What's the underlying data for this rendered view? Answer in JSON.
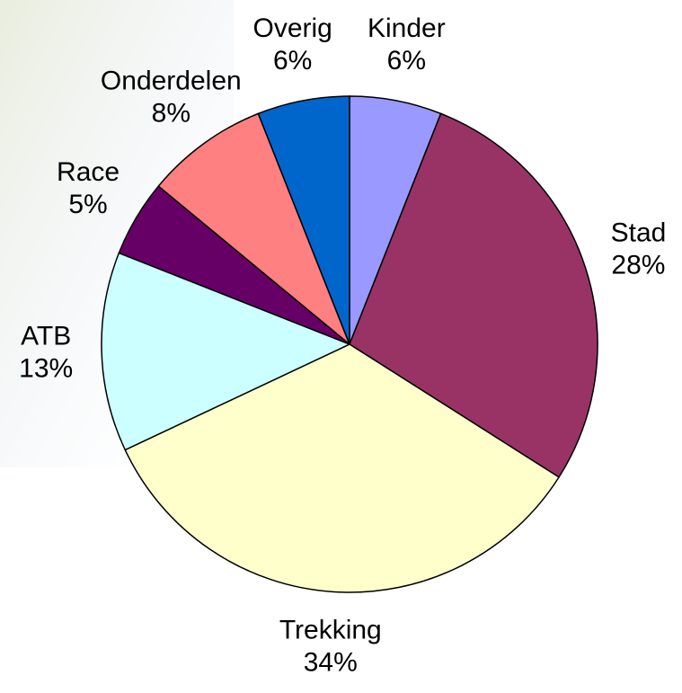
{
  "chart_data": {
    "type": "pie",
    "categories": [
      "Kinder",
      "Stad",
      "Trekking",
      "ATB",
      "Race",
      "Onderdelen",
      "Overig"
    ],
    "values": [
      6,
      28,
      34,
      13,
      5,
      8,
      6
    ],
    "value_labels": [
      "6%",
      "28%",
      "34%",
      "13%",
      "5%",
      "8%",
      "6%"
    ],
    "colors": [
      "#9999ff",
      "#993366",
      "#ffffcc",
      "#ccffff",
      "#660066",
      "#ff8080",
      "#0066cc"
    ]
  }
}
